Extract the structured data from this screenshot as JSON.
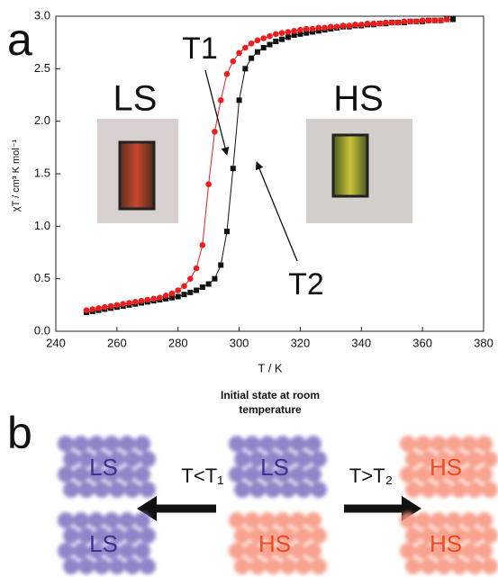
{
  "chart_data": {
    "type": "scatter",
    "x_label": "T  /  K",
    "y_label": "χT / cm³ K mol⁻¹",
    "xlim": [
      240,
      380
    ],
    "xticks": [
      240,
      260,
      280,
      300,
      320,
      340,
      360,
      380
    ],
    "ylim": [
      0,
      3
    ],
    "yticks": [
      {
        "value": 0,
        "label": "0.0"
      },
      0.5,
      {
        "value": 1,
        "label": "1.0"
      },
      1.5,
      {
        "value": 2,
        "label": "2.0"
      },
      2.5,
      {
        "value": 3,
        "label": "3.0"
      }
    ],
    "x": [
      250,
      252,
      254,
      256,
      258,
      260,
      262,
      264,
      266,
      268,
      270,
      272,
      274,
      276,
      278,
      280,
      282,
      284,
      286,
      288,
      290,
      292,
      294,
      296,
      298,
      300,
      302,
      304,
      306,
      308,
      310,
      312,
      314,
      316,
      318,
      320,
      322,
      324,
      326,
      328,
      330,
      332,
      334,
      336,
      338,
      340,
      342,
      344,
      346,
      348,
      350,
      352,
      354,
      356,
      358,
      360,
      362,
      364,
      366,
      368,
      370
    ],
    "series": [
      {
        "color": "#111111",
        "marker": "square",
        "values": [
          0.18,
          0.19,
          0.2,
          0.21,
          0.22,
          0.23,
          0.24,
          0.25,
          0.26,
          0.27,
          0.28,
          0.29,
          0.3,
          0.31,
          0.32,
          0.33,
          0.35,
          0.37,
          0.39,
          0.42,
          0.45,
          0.5,
          0.63,
          0.95,
          1.55,
          2.2,
          2.5,
          2.6,
          2.66,
          2.7,
          2.73,
          2.76,
          2.78,
          2.8,
          2.82,
          2.83,
          2.84,
          2.85,
          2.86,
          2.87,
          2.88,
          2.89,
          2.9,
          2.9,
          2.91,
          2.91,
          2.92,
          2.92,
          2.93,
          2.93,
          2.94,
          2.94,
          2.94,
          2.95,
          2.95,
          2.95,
          2.96,
          2.96,
          2.96,
          2.97,
          2.97
        ]
      },
      {
        "color": "#ee1c1c",
        "marker": "circle",
        "values": [
          0.2,
          0.21,
          0.22,
          0.23,
          0.24,
          0.25,
          0.26,
          0.27,
          0.28,
          0.29,
          0.3,
          0.31,
          0.32,
          0.34,
          0.36,
          0.39,
          0.43,
          0.5,
          0.6,
          0.82,
          1.4,
          1.9,
          2.2,
          2.45,
          2.57,
          2.65,
          2.7,
          2.74,
          2.77,
          2.79,
          2.81,
          2.83,
          2.84,
          2.85,
          2.86,
          2.87,
          2.88,
          2.88,
          2.89,
          2.89,
          2.9,
          2.9,
          2.91,
          2.91,
          2.92,
          2.92,
          2.93,
          2.93,
          2.93,
          2.94,
          2.94,
          2.94,
          2.95,
          2.95,
          2.95,
          2.96,
          2.96,
          2.96,
          2.96,
          2.97,
          null
        ]
      }
    ],
    "annotations": [
      "T1",
      "T2"
    ]
  },
  "panel_labels": [
    "a",
    "b"
  ],
  "photos": [
    {
      "label": "LS"
    },
    {
      "label": "HS"
    }
  ],
  "diagram": {
    "title_lines": [
      "Initial state at room",
      "temperature"
    ],
    "arrows": [
      {
        "label": "T<T₁"
      },
      {
        "label": "T>T₂"
      }
    ],
    "boxes": [
      {
        "label": "LS",
        "color": "#7b6fc0"
      },
      {
        "label": "LS",
        "color": "#7b6fc0"
      },
      {
        "label": "HS",
        "color": "#f7927c"
      },
      {
        "label": "LS",
        "color": "#7b6fc0"
      },
      {
        "label": "HS",
        "color": "#f7927c"
      },
      {
        "label": "HS",
        "color": "#f7927c"
      }
    ]
  }
}
